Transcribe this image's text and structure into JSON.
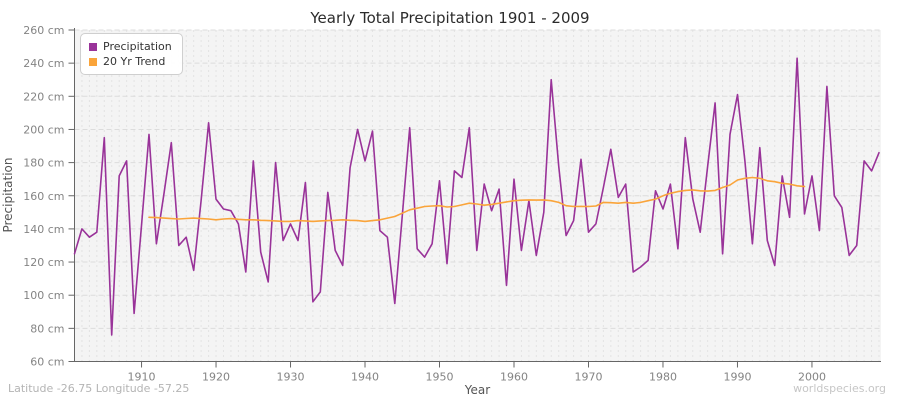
{
  "footer": {
    "left": "Latitude -26.75 Longitude -57.25",
    "right": "worldspecies.org"
  },
  "chart_data": {
    "type": "line",
    "title": "Yearly Total Precipitation 1901 - 2009",
    "xlabel": "Year",
    "ylabel": "Precipitation",
    "x_range": [
      1901,
      2009
    ],
    "ylim": [
      60,
      260
    ],
    "unit": "cm",
    "grid": "dashed light-gray horizontal and per-year vertical lines on #f4f4f4 panel",
    "legend_position": "top-left",
    "plot_bg": "#f4f4f4",
    "y_ticks": [
      {
        "value": 60,
        "label": "60 cm"
      },
      {
        "value": 80,
        "label": "80 cm"
      },
      {
        "value": 100,
        "label": "100 cm"
      },
      {
        "value": 120,
        "label": "120 cm"
      },
      {
        "value": 140,
        "label": "140 cm"
      },
      {
        "value": 160,
        "label": "160 cm"
      },
      {
        "value": 180,
        "label": "180 cm"
      },
      {
        "value": 200,
        "label": "200 cm"
      },
      {
        "value": 220,
        "label": "220 cm"
      },
      {
        "value": 240,
        "label": "240 cm"
      },
      {
        "value": 260,
        "label": "260 cm"
      }
    ],
    "x_ticks": [
      {
        "value": 1910,
        "label": "1910"
      },
      {
        "value": 1920,
        "label": "1920"
      },
      {
        "value": 1930,
        "label": "1930"
      },
      {
        "value": 1940,
        "label": "1940"
      },
      {
        "value": 1950,
        "label": "1950"
      },
      {
        "value": 1960,
        "label": "1960"
      },
      {
        "value": 1970,
        "label": "1970"
      },
      {
        "value": 1980,
        "label": "1980"
      },
      {
        "value": 1990,
        "label": "1990"
      },
      {
        "value": 2000,
        "label": "2000"
      }
    ],
    "series": [
      {
        "name": "Precipitation",
        "color": "#993399",
        "start_year": 1901,
        "values": [
          125,
          140,
          135,
          138,
          195,
          76,
          172,
          181,
          89,
          142,
          197,
          131,
          161,
          192,
          130,
          135,
          115,
          157,
          204,
          158,
          152,
          151,
          143,
          114,
          181,
          126,
          108,
          180,
          133,
          143,
          133,
          168,
          96,
          102,
          162,
          127,
          118,
          177,
          200,
          181,
          199,
          139,
          135,
          95,
          148,
          201,
          128,
          123,
          131,
          169,
          119,
          175,
          171,
          201,
          127,
          167,
          151,
          164,
          106,
          170,
          127,
          157,
          124,
          150,
          230,
          178,
          136,
          145,
          182,
          138,
          143,
          165,
          188,
          159,
          167,
          114,
          117,
          121,
          163,
          152,
          167,
          128,
          195,
          158,
          138,
          178,
          216,
          125,
          197,
          221,
          181,
          131,
          189,
          133,
          118,
          172,
          147,
          243,
          149,
          172,
          139,
          226,
          160,
          153,
          124,
          130,
          181,
          175,
          186
        ]
      },
      {
        "name": "20 Yr Trend",
        "color": "#FAA43A",
        "start_year": 1911,
        "values": [
          147.0,
          146.8,
          146.5,
          146.2,
          146.0,
          146.3,
          146.5,
          146.2,
          146.0,
          145.5,
          146.0,
          146.2,
          145.8,
          145.5,
          145.5,
          145.2,
          145.0,
          144.8,
          144.5,
          144.5,
          145.0,
          144.8,
          144.5,
          144.8,
          145.0,
          145.2,
          145.5,
          145.2,
          145.0,
          144.5,
          145.0,
          145.5,
          146.5,
          147.5,
          149.5,
          151.5,
          152.5,
          153.5,
          153.8,
          154.0,
          153.2,
          153.5,
          154.5,
          155.5,
          155.0,
          154.3,
          154.8,
          155.5,
          156.3,
          157.0,
          157.3,
          157.5,
          157.4,
          157.5,
          157.0,
          156.0,
          154.0,
          153.5,
          153.6,
          153.5,
          153.8,
          156.0,
          155.8,
          155.5,
          156.0,
          155.5,
          156.0,
          157.0,
          158.0,
          160.0,
          161.5,
          162.5,
          163.2,
          163.5,
          163.0,
          162.8,
          163.2,
          165.0,
          166.5,
          169.5,
          170.5,
          171.0,
          170.5,
          169.0,
          168.5,
          167.5,
          167.0,
          166.0,
          165.5
        ]
      }
    ]
  }
}
